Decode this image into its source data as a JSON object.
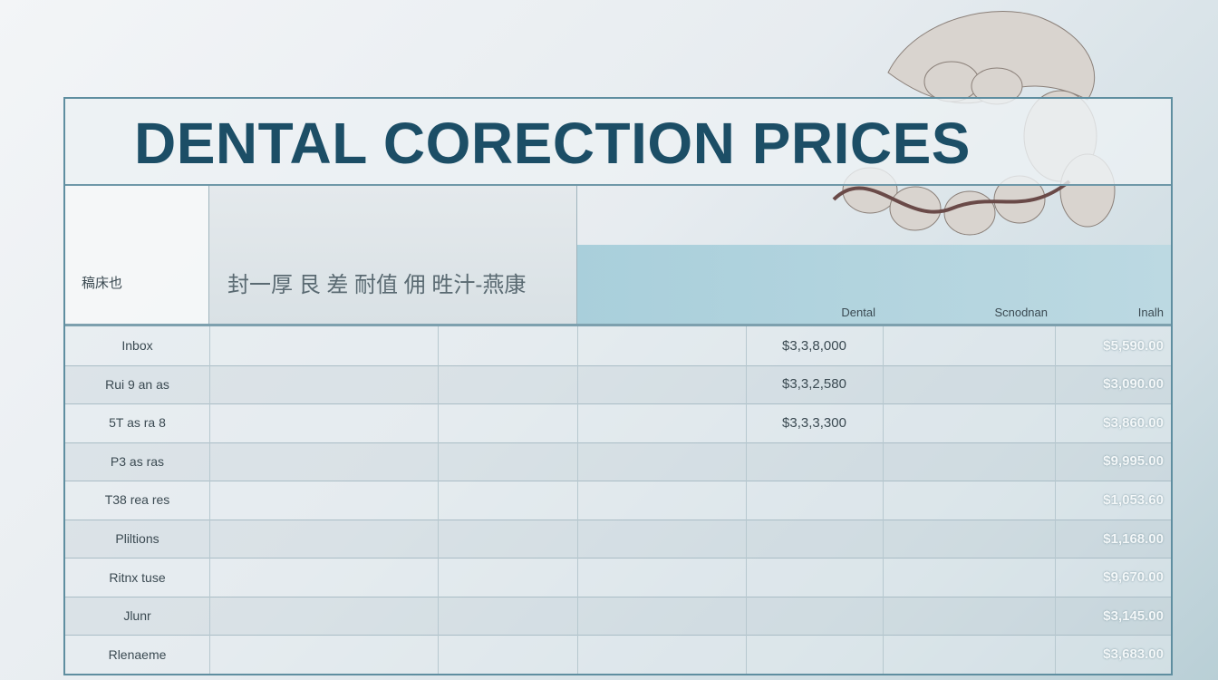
{
  "header": {
    "title": "DENTAL CORECTION PRICES"
  },
  "table": {
    "head": {
      "label": "稿床也",
      "group": "封一厚  艮 差  耐值  佣 甠汁-燕康",
      "columns": [
        "Dental",
        "Scnodnan",
        "Inalh"
      ]
    },
    "rows": [
      {
        "label": "Inbox",
        "mid": "$3,3,8,000",
        "right": "$5,590.00"
      },
      {
        "label": "Rui 9 an as",
        "mid": "$3,3,2,580",
        "right": "$3,090.00"
      },
      {
        "label": "5T as ra 8",
        "mid": "$3,3,3,300",
        "right": "$3,860.00"
      },
      {
        "label": "P3 as ras",
        "right": "$9,995.00"
      },
      {
        "label": "T38 rea res",
        "right": "$1,053.60"
      },
      {
        "label": "Pliltions",
        "right": "$1,168.00"
      },
      {
        "label": "Ritnx tuse",
        "right": "$9,670.00"
      },
      {
        "label": "Jlunr",
        "right": "$3,145.00"
      },
      {
        "label": "Rlenaeme",
        "right": "$3,683.00"
      }
    ]
  }
}
